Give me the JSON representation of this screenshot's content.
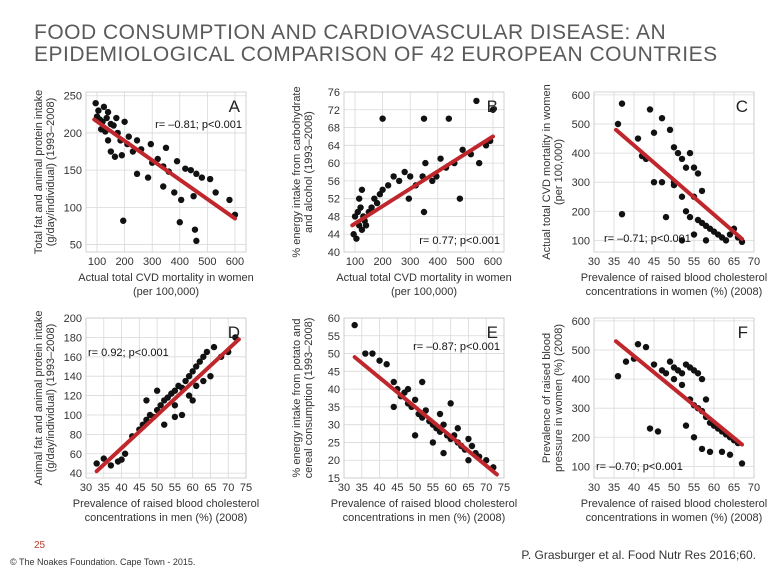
{
  "slide": {
    "title": "FOOD CONSUMPTION AND CARDIOVASCULAR DISEASE: AN EPIDEMIOLOGICAL COMPARISON OF 42 EUROPEAN COUNTRIES",
    "page_number": "25",
    "copyright": "© The Noakes Foundation. Cape Town - 2015.",
    "citation": "P. Grasburger et al. Food Nutr Res 2016;60."
  },
  "colors": {
    "points": "#111111",
    "trend": "#c0272d",
    "title": "#5a5a5a"
  },
  "chart_data": [
    {
      "type": "scatter",
      "letter": "A",
      "stat": "r= –0.81; p<0.001",
      "xlabel": [
        "Actual total CVD mortality in women",
        "(per 100,000)"
      ],
      "ylabel": [
        "Total fat and animal protein intake",
        "(g/day/individual) (1993–2008)"
      ],
      "xlim": [
        60,
        640
      ],
      "ylim": [
        40,
        255
      ],
      "xticks": [
        100,
        200,
        300,
        400,
        500,
        600
      ],
      "yticks": [
        50,
        100,
        150,
        200,
        250
      ],
      "trend": [
        [
          90,
          218
        ],
        [
          600,
          85
        ]
      ],
      "points": [
        [
          95,
          240
        ],
        [
          105,
          230
        ],
        [
          125,
          235
        ],
        [
          140,
          228
        ],
        [
          100,
          222
        ],
        [
          110,
          218
        ],
        [
          120,
          215
        ],
        [
          135,
          220
        ],
        [
          150,
          212
        ],
        [
          160,
          210
        ],
        [
          115,
          205
        ],
        [
          130,
          202
        ],
        [
          170,
          220
        ],
        [
          200,
          215
        ],
        [
          175,
          200
        ],
        [
          215,
          195
        ],
        [
          140,
          190
        ],
        [
          185,
          190
        ],
        [
          210,
          185
        ],
        [
          245,
          190
        ],
        [
          150,
          175
        ],
        [
          165,
          168
        ],
        [
          190,
          170
        ],
        [
          230,
          175
        ],
        [
          260,
          178
        ],
        [
          295,
          185
        ],
        [
          320,
          165
        ],
        [
          350,
          180
        ],
        [
          300,
          160
        ],
        [
          340,
          155
        ],
        [
          360,
          148
        ],
        [
          390,
          162
        ],
        [
          420,
          152
        ],
        [
          440,
          150
        ],
        [
          460,
          145
        ],
        [
          480,
          140
        ],
        [
          510,
          138
        ],
        [
          380,
          120
        ],
        [
          405,
          110
        ],
        [
          450,
          115
        ],
        [
          530,
          120
        ],
        [
          580,
          110
        ],
        [
          600,
          90
        ],
        [
          195,
          82
        ],
        [
          400,
          80
        ],
        [
          455,
          70
        ],
        [
          460,
          55
        ],
        [
          285,
          140
        ],
        [
          245,
          145
        ],
        [
          340,
          128
        ]
      ]
    },
    {
      "type": "scatter",
      "letter": "B",
      "stat": "r= 0.77; p<0.001",
      "xlabel": [
        "Actual total CVD mortality in women",
        "(per 100,000)"
      ],
      "ylabel": [
        "% energy intake from carbohydrate",
        "and alcohol (1993–2008)"
      ],
      "xlim": [
        60,
        640
      ],
      "ylim": [
        40,
        76
      ],
      "xticks": [
        100,
        200,
        300,
        400,
        500,
        600
      ],
      "yticks": [
        40,
        44,
        48,
        52,
        56,
        60,
        64,
        68,
        72,
        76
      ],
      "trend": [
        [
          90,
          46
        ],
        [
          600,
          66
        ]
      ],
      "points": [
        [
          95,
          44
        ],
        [
          105,
          43
        ],
        [
          115,
          46
        ],
        [
          125,
          45
        ],
        [
          135,
          47
        ],
        [
          100,
          48
        ],
        [
          110,
          49
        ],
        [
          120,
          50
        ],
        [
          130,
          48
        ],
        [
          140,
          46
        ],
        [
          150,
          49
        ],
        [
          160,
          50
        ],
        [
          170,
          52
        ],
        [
          180,
          51
        ],
        [
          190,
          53
        ],
        [
          200,
          54
        ],
        [
          220,
          55
        ],
        [
          240,
          57
        ],
        [
          260,
          56
        ],
        [
          280,
          58
        ],
        [
          300,
          57
        ],
        [
          320,
          55
        ],
        [
          345,
          57
        ],
        [
          355,
          60
        ],
        [
          380,
          56
        ],
        [
          395,
          57
        ],
        [
          410,
          61
        ],
        [
          430,
          59
        ],
        [
          460,
          60
        ],
        [
          490,
          63
        ],
        [
          520,
          62
        ],
        [
          550,
          60
        ],
        [
          575,
          64
        ],
        [
          590,
          65
        ],
        [
          600,
          72
        ],
        [
          540,
          74
        ],
        [
          440,
          70
        ],
        [
          350,
          70
        ],
        [
          200,
          70
        ],
        [
          295,
          52
        ],
        [
          480,
          52
        ],
        [
          350,
          49
        ],
        [
          125,
          54
        ],
        [
          115,
          52
        ]
      ]
    },
    {
      "type": "scatter",
      "letter": "C",
      "stat": "r= –0.71; p<0.001",
      "xlabel": [
        "Prevalence of raised blood cholesterol",
        "concentrations in women (%) (2008)"
      ],
      "ylabel": [
        "Actual total CVD mortality in women",
        "(per 100,000)"
      ],
      "xlim": [
        30,
        70
      ],
      "ylim": [
        60,
        610
      ],
      "xticks": [
        30,
        35,
        40,
        45,
        50,
        55,
        60,
        65,
        70
      ],
      "yticks": [
        100,
        200,
        300,
        400,
        500,
        600
      ],
      "trend": [
        [
          35.5,
          480
        ],
        [
          67,
          105
        ]
      ],
      "points": [
        [
          37,
          570
        ],
        [
          36,
          500
        ],
        [
          41,
          450
        ],
        [
          44,
          550
        ],
        [
          45,
          470
        ],
        [
          47,
          520
        ],
        [
          49,
          480
        ],
        [
          42,
          390
        ],
        [
          43,
          380
        ],
        [
          45,
          300
        ],
        [
          47,
          300
        ],
        [
          50,
          420
        ],
        [
          51,
          400
        ],
        [
          52,
          380
        ],
        [
          53,
          350
        ],
        [
          54,
          400
        ],
        [
          55,
          350
        ],
        [
          56,
          330
        ],
        [
          57,
          270
        ],
        [
          50,
          300
        ],
        [
          52,
          250
        ],
        [
          55,
          250
        ],
        [
          53,
          200
        ],
        [
          54,
          180
        ],
        [
          56,
          170
        ],
        [
          57,
          160
        ],
        [
          58,
          150
        ],
        [
          59,
          140
        ],
        [
          60,
          130
        ],
        [
          61,
          120
        ],
        [
          62,
          110
        ],
        [
          63,
          100
        ],
        [
          64,
          120
        ],
        [
          65,
          140
        ],
        [
          66,
          110
        ],
        [
          67,
          95
        ],
        [
          55,
          120
        ],
        [
          52,
          100
        ],
        [
          58,
          100
        ],
        [
          48,
          180
        ],
        [
          50,
          290
        ],
        [
          37,
          190
        ]
      ]
    },
    {
      "type": "scatter",
      "letter": "D",
      "stat": "r= 0.92; p<0.001",
      "xlabel": [
        "Prevalence of raised blood cholesterol",
        "concentrations in men (%) (2008)"
      ],
      "ylabel": [
        "Animal fat and animal protein intake",
        "(g/day/individual) (1993–2008)"
      ],
      "xlim": [
        30,
        75
      ],
      "ylim": [
        35,
        200
      ],
      "xticks": [
        30,
        35,
        40,
        45,
        50,
        55,
        60,
        65,
        70,
        75
      ],
      "yticks": [
        40,
        60,
        80,
        100,
        120,
        140,
        160,
        180,
        200
      ],
      "trend": [
        [
          33,
          42
        ],
        [
          73,
          178
        ]
      ],
      "points": [
        [
          33,
          50
        ],
        [
          35,
          55
        ],
        [
          37,
          48
        ],
        [
          39,
          52
        ],
        [
          40,
          54
        ],
        [
          41,
          60
        ],
        [
          43,
          78
        ],
        [
          45,
          85
        ],
        [
          46,
          90
        ],
        [
          47,
          95
        ],
        [
          48,
          100
        ],
        [
          49,
          98
        ],
        [
          50,
          105
        ],
        [
          51,
          110
        ],
        [
          52,
          115
        ],
        [
          53,
          118
        ],
        [
          54,
          122
        ],
        [
          55,
          125
        ],
        [
          56,
          130
        ],
        [
          57,
          128
        ],
        [
          58,
          135
        ],
        [
          59,
          140
        ],
        [
          60,
          145
        ],
        [
          61,
          150
        ],
        [
          62,
          155
        ],
        [
          63,
          160
        ],
        [
          64,
          165
        ],
        [
          66,
          170
        ],
        [
          68,
          160
        ],
        [
          70,
          165
        ],
        [
          72,
          180
        ],
        [
          55,
          110
        ],
        [
          57,
          100
        ],
        [
          59,
          120
        ],
        [
          61,
          130
        ],
        [
          63,
          135
        ],
        [
          65,
          140
        ],
        [
          47,
          115
        ],
        [
          50,
          125
        ],
        [
          52,
          90
        ],
        [
          55,
          98
        ],
        [
          60,
          115
        ]
      ]
    },
    {
      "type": "scatter",
      "letter": "E",
      "stat": "r= –0.87; p<0.001",
      "xlabel": [
        "Prevalence of raised blood cholesterol",
        "concentrations in men (%) (2008)"
      ],
      "ylabel": [
        "% energy intake from potato and",
        "cereal consumption (1993–2008)"
      ],
      "xlim": [
        30,
        75
      ],
      "ylim": [
        15,
        60
      ],
      "xticks": [
        30,
        35,
        40,
        45,
        50,
        55,
        60,
        65,
        70,
        75
      ],
      "yticks": [
        15,
        20,
        25,
        30,
        35,
        40,
        45,
        50,
        55,
        60
      ],
      "trend": [
        [
          33,
          49
        ],
        [
          73,
          16
        ]
      ],
      "points": [
        [
          33,
          58
        ],
        [
          36,
          50
        ],
        [
          38,
          50
        ],
        [
          40,
          48
        ],
        [
          42,
          47
        ],
        [
          44,
          42
        ],
        [
          45,
          40
        ],
        [
          46,
          38
        ],
        [
          47,
          39
        ],
        [
          48,
          36
        ],
        [
          49,
          35
        ],
        [
          50,
          37
        ],
        [
          51,
          33
        ],
        [
          52,
          32
        ],
        [
          53,
          34
        ],
        [
          54,
          31
        ],
        [
          55,
          30
        ],
        [
          56,
          29
        ],
        [
          57,
          28
        ],
        [
          58,
          30
        ],
        [
          59,
          27
        ],
        [
          60,
          26
        ],
        [
          61,
          27
        ],
        [
          62,
          25
        ],
        [
          63,
          24
        ],
        [
          64,
          23
        ],
        [
          65,
          26
        ],
        [
          66,
          24
        ],
        [
          67,
          22
        ],
        [
          68,
          21
        ],
        [
          70,
          20
        ],
        [
          72,
          18
        ],
        [
          44,
          35
        ],
        [
          50,
          27
        ],
        [
          55,
          25
        ],
        [
          57,
          33
        ],
        [
          60,
          36
        ],
        [
          62,
          29
        ],
        [
          52,
          42
        ],
        [
          48,
          40
        ],
        [
          58,
          22
        ],
        [
          65,
          20
        ]
      ]
    },
    {
      "type": "scatter",
      "letter": "F",
      "stat": "r= –0.70; p<0.001",
      "xlabel": [
        "Prevalence of raised blood cholesterol",
        "concentrations in women (%) (2008)"
      ],
      "ylabel": [
        "Prevalence of raised blood",
        "pressure in women (%) (2008)"
      ],
      "xlim": [
        30,
        70
      ],
      "ylim": [
        60,
        610
      ],
      "xticks": [
        30,
        35,
        40,
        45,
        50,
        55,
        60,
        65,
        70
      ],
      "yticks": [
        100,
        200,
        300,
        400,
        500,
        600
      ],
      "trend": [
        [
          35.5,
          530
        ],
        [
          67,
          175
        ]
      ],
      "points": [
        [
          36,
          410
        ],
        [
          38,
          460
        ],
        [
          40,
          470
        ],
        [
          41,
          520
        ],
        [
          43,
          510
        ],
        [
          45,
          450
        ],
        [
          47,
          430
        ],
        [
          48,
          420
        ],
        [
          49,
          460
        ],
        [
          50,
          440
        ],
        [
          51,
          430
        ],
        [
          52,
          420
        ],
        [
          53,
          450
        ],
        [
          54,
          440
        ],
        [
          55,
          430
        ],
        [
          56,
          420
        ],
        [
          57,
          400
        ],
        [
          50,
          400
        ],
        [
          52,
          380
        ],
        [
          54,
          330
        ],
        [
          55,
          310
        ],
        [
          56,
          300
        ],
        [
          57,
          290
        ],
        [
          58,
          270
        ],
        [
          59,
          250
        ],
        [
          60,
          240
        ],
        [
          61,
          230
        ],
        [
          62,
          220
        ],
        [
          63,
          210
        ],
        [
          64,
          200
        ],
        [
          65,
          190
        ],
        [
          66,
          180
        ],
        [
          67,
          110
        ],
        [
          44,
          230
        ],
        [
          46,
          220
        ],
        [
          53,
          240
        ],
        [
          55,
          200
        ],
        [
          57,
          160
        ],
        [
          59,
          150
        ],
        [
          62,
          150
        ],
        [
          64,
          140
        ],
        [
          58,
          330
        ]
      ]
    }
  ]
}
